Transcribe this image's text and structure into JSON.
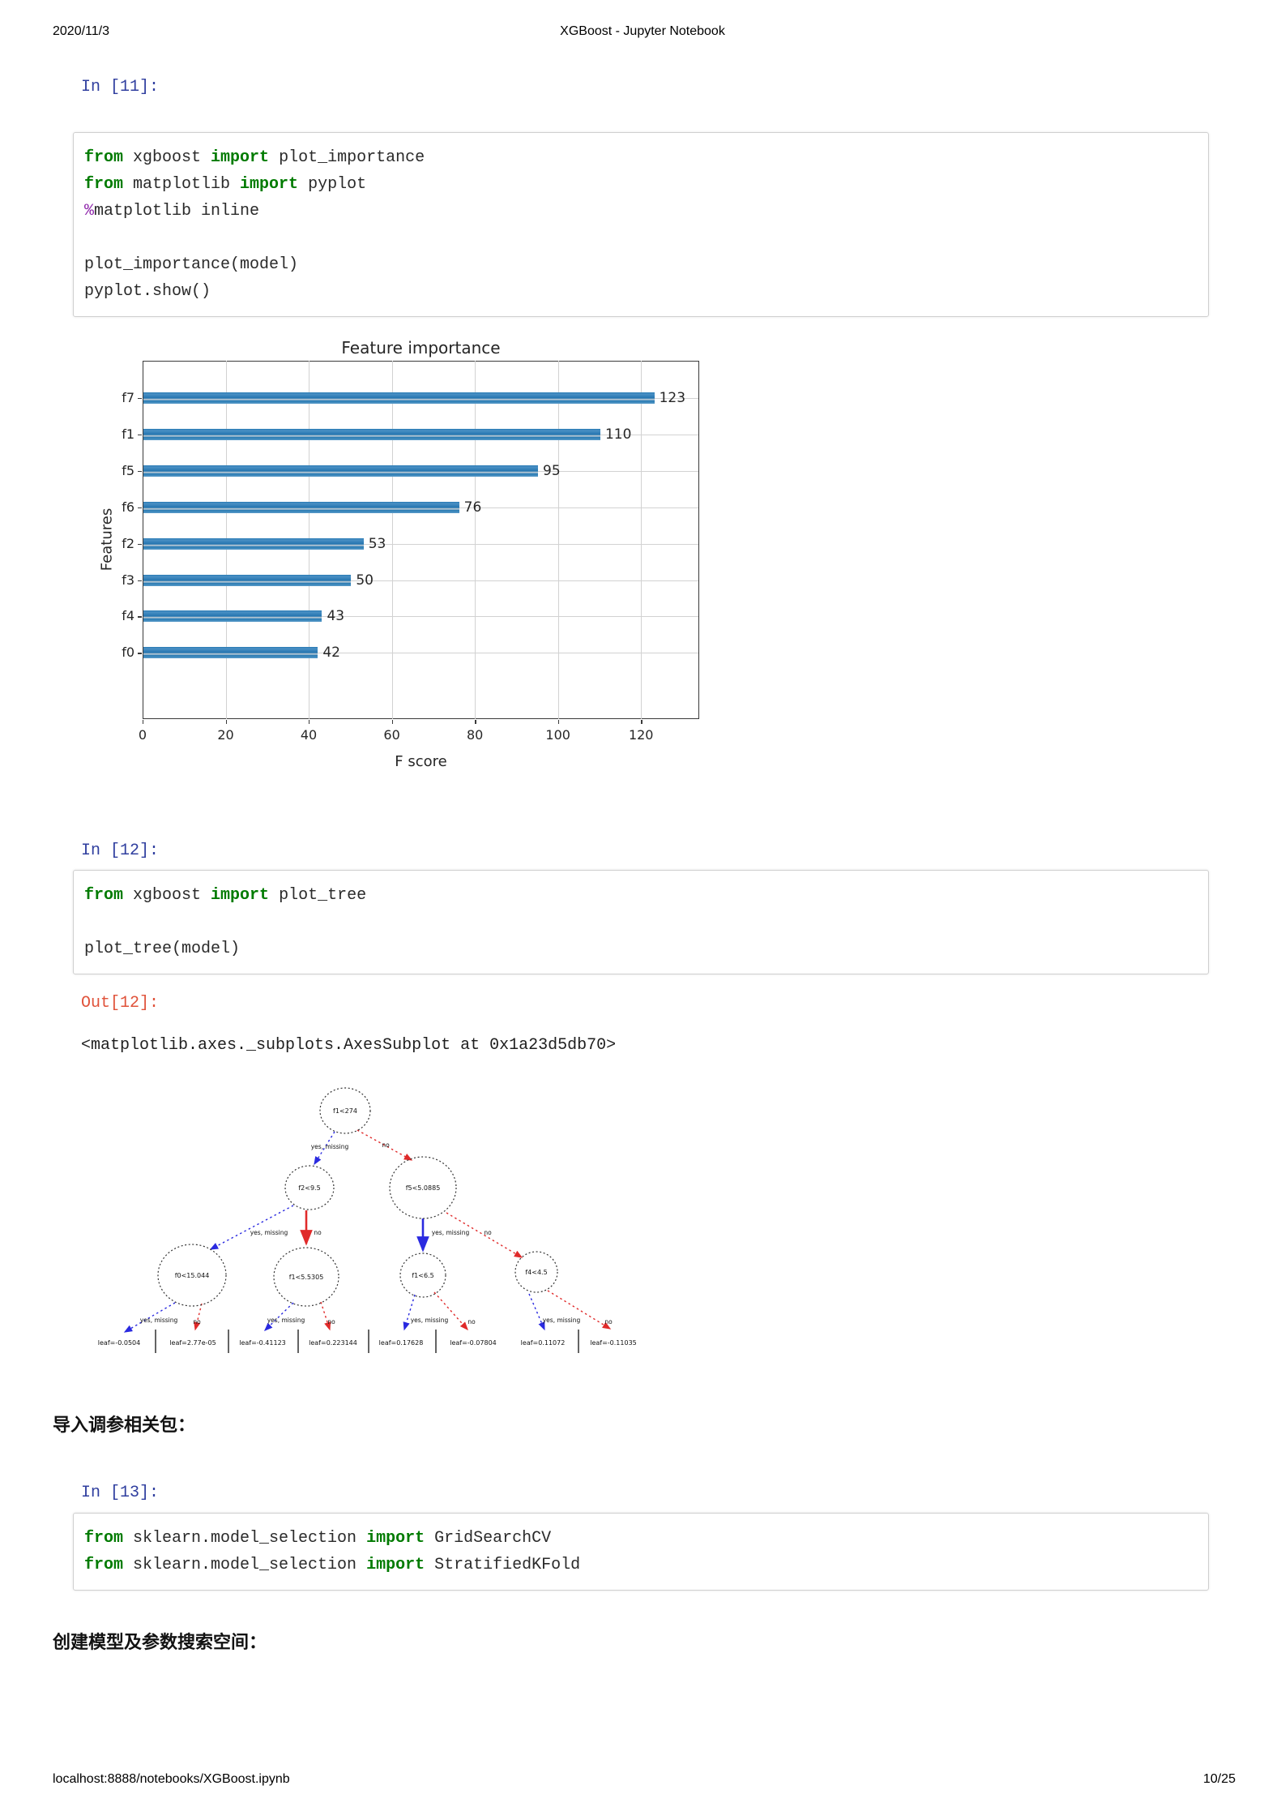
{
  "header": {
    "date": "2020/11/3",
    "title": "XGBoost - Jupyter Notebook"
  },
  "footer": {
    "url": "localhost:8888/notebooks/XGBoost.ipynb",
    "page": "10/25"
  },
  "prompts": {
    "in11": "In  [11]:",
    "in12": "In  [12]:",
    "out12": "Out[12]:",
    "in13": "In  [13]:"
  },
  "cells": {
    "c11": {
      "lines": [
        [
          [
            "kw",
            "from"
          ],
          [
            "pl",
            " xgboost "
          ],
          [
            "kw",
            "import"
          ],
          [
            "pl",
            " plot_importance"
          ]
        ],
        [
          [
            "kw",
            "from"
          ],
          [
            "pl",
            " matplotlib "
          ],
          [
            "kw",
            "import"
          ],
          [
            "pl",
            " pyplot"
          ]
        ],
        [
          [
            "mg",
            "%"
          ],
          [
            "pl",
            "matplotlib inline"
          ]
        ],
        [],
        [
          [
            "pl",
            "plot_importance(model)"
          ]
        ],
        [
          [
            "pl",
            "pyplot.show()"
          ]
        ]
      ]
    },
    "c12": {
      "lines": [
        [
          [
            "kw",
            "from"
          ],
          [
            "pl",
            " xgboost "
          ],
          [
            "kw",
            "import"
          ],
          [
            "pl",
            " plot_tree"
          ]
        ],
        [],
        [
          [
            "pl",
            "plot_tree(model)"
          ]
        ]
      ]
    },
    "c13": {
      "lines": [
        [
          [
            "kw",
            "from"
          ],
          [
            "pl",
            " sklearn.model_selection "
          ],
          [
            "kw",
            "import"
          ],
          [
            "pl",
            " GridSearchCV"
          ]
        ],
        [
          [
            "kw",
            "from"
          ],
          [
            "pl",
            " sklearn.model_selection "
          ],
          [
            "kw",
            "import"
          ],
          [
            "pl",
            " StratifiedKFold"
          ]
        ]
      ]
    }
  },
  "output12_text": "<matplotlib.axes._subplots.AxesSubplot at 0x1a23d5db70>",
  "headings": {
    "tuning_packages": "导入调参相关包：",
    "search_space": "创建模型及参数搜索空间："
  },
  "chart_data": {
    "type": "bar",
    "orientation": "horizontal",
    "title": "Feature importance",
    "xlabel": "F score",
    "ylabel": "Features",
    "categories": [
      "f7",
      "f1",
      "f5",
      "f6",
      "f2",
      "f3",
      "f4",
      "f0"
    ],
    "values": [
      123,
      110,
      95,
      76,
      53,
      50,
      43,
      42
    ],
    "xticks": [
      0,
      20,
      40,
      60,
      80,
      100,
      120
    ],
    "xlim": [
      0,
      134
    ],
    "grid": true,
    "value_labels": true,
    "bar_color": "#1f77b4",
    "legend": "none"
  },
  "tree": {
    "edge_yes": "yes, missing",
    "edge_no": "no",
    "nodes": {
      "root": "f1<274",
      "l": "f2<9.5",
      "r": "f5<5.0885",
      "ll": "f0<15.044",
      "lc": "f1<5.5305",
      "rc": "f1<6.5",
      "rr": "f4<4.5"
    },
    "leaves": [
      "leaf=-0.0504",
      "leaf=2.77e-05",
      "leaf=-0.41123",
      "leaf=0.223144",
      "leaf=0.17628",
      "leaf=-0.07804",
      "leaf=0.11072",
      "leaf=-0.11035"
    ]
  },
  "colors": {
    "prompt_in": "#303f9f",
    "prompt_out": "#e0533b",
    "keyword_green": "#007b00",
    "magic_purple": "#8e24aa",
    "bar_blue": "#1f77b4",
    "tree_edge_yes_blue": "#2a2ae0",
    "tree_edge_no_red": "#e02a2a"
  }
}
